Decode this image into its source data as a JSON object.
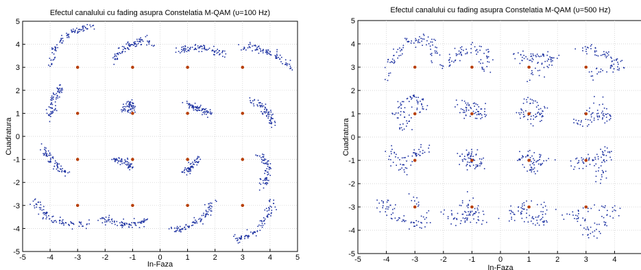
{
  "chart_data": [
    {
      "type": "scatter",
      "title": "Efectul canalului cu fading asupra Constelatia M-QAM (υ=100 Hz)",
      "xlabel": "In-Faza",
      "ylabel": "Cuadratura",
      "xlim": [
        -5,
        5
      ],
      "ylim": [
        -5,
        5
      ],
      "xticks": [
        -5,
        -4,
        -3,
        -2,
        -1,
        0,
        1,
        2,
        3,
        4,
        5
      ],
      "yticks": [
        -5,
        -4,
        -3,
        -2,
        -1,
        0,
        1,
        2,
        3,
        4,
        5
      ],
      "grid": true,
      "ideal_points": [
        [
          -3,
          3
        ],
        [
          -1,
          3
        ],
        [
          1,
          3
        ],
        [
          3,
          3
        ],
        [
          -3,
          1
        ],
        [
          -1,
          1
        ],
        [
          1,
          1
        ],
        [
          3,
          1
        ],
        [
          -3,
          -1
        ],
        [
          -1,
          -1
        ],
        [
          1,
          -1
        ],
        [
          3,
          -1
        ],
        [
          -3,
          -3
        ],
        [
          -1,
          -3
        ],
        [
          1,
          -3
        ],
        [
          3,
          -3
        ]
      ],
      "ideal_color": "#b8400a",
      "received_color": "#1a2fa0",
      "received_arcs": [
        [
          [
            -4.0,
            3.0
          ],
          [
            -3.9,
            3.6
          ],
          [
            -3.7,
            4.0
          ],
          [
            -3.4,
            4.4
          ],
          [
            -3.1,
            4.6
          ],
          [
            -2.8,
            4.7
          ],
          [
            -2.5,
            4.7
          ]
        ],
        [
          [
            -1.7,
            3.3
          ],
          [
            -1.5,
            3.6
          ],
          [
            -1.3,
            3.8
          ],
          [
            -1.1,
            4.0
          ],
          [
            -0.8,
            4.1
          ],
          [
            -0.6,
            4.15
          ],
          [
            -0.3,
            4.0
          ]
        ],
        [
          [
            0.7,
            3.7
          ],
          [
            0.9,
            3.75
          ],
          [
            1.2,
            3.8
          ],
          [
            1.5,
            3.85
          ],
          [
            1.8,
            3.8
          ],
          [
            2.1,
            3.7
          ],
          [
            2.3,
            3.55
          ]
        ],
        [
          [
            3.0,
            3.9
          ],
          [
            3.3,
            3.9
          ],
          [
            3.6,
            3.8
          ],
          [
            3.9,
            3.7
          ],
          [
            4.2,
            3.5
          ],
          [
            4.5,
            3.2
          ],
          [
            4.7,
            3.0
          ]
        ],
        [
          [
            -4.0,
            0.8
          ],
          [
            -3.95,
            1.1
          ],
          [
            -3.9,
            1.4
          ],
          [
            -3.8,
            1.7
          ],
          [
            -3.7,
            2.0
          ],
          [
            -3.6,
            2.15
          ]
        ],
        [
          [
            -1.3,
            1.05
          ],
          [
            -1.2,
            1.3
          ],
          [
            -1.1,
            1.5
          ],
          [
            -1.05,
            1.25
          ],
          [
            -1.1,
            1.15
          ]
        ],
        [
          [
            0.95,
            1.45
          ],
          [
            1.1,
            1.3
          ],
          [
            1.3,
            1.25
          ],
          [
            1.5,
            1.2
          ],
          [
            1.7,
            1.1
          ],
          [
            1.8,
            1.0
          ]
        ],
        [
          [
            3.3,
            1.6
          ],
          [
            3.6,
            1.4
          ],
          [
            3.8,
            1.2
          ],
          [
            3.95,
            1.0
          ],
          [
            4.05,
            0.8
          ],
          [
            4.1,
            0.55
          ]
        ],
        [
          [
            -4.3,
            -0.5
          ],
          [
            -4.15,
            -0.8
          ],
          [
            -4.0,
            -1.0
          ],
          [
            -3.8,
            -1.25
          ],
          [
            -3.6,
            -1.45
          ],
          [
            -3.4,
            -1.55
          ]
        ],
        [
          [
            -1.7,
            -1.0
          ],
          [
            -1.5,
            -1.05
          ],
          [
            -1.3,
            -1.1
          ],
          [
            -1.15,
            -1.2
          ],
          [
            -1.05,
            -1.35
          ]
        ],
        [
          [
            0.9,
            -1.6
          ],
          [
            1.0,
            -1.45
          ],
          [
            1.15,
            -1.3
          ],
          [
            1.25,
            -1.1
          ],
          [
            1.35,
            -0.95
          ]
        ],
        [
          [
            3.6,
            -0.8
          ],
          [
            3.8,
            -1.0
          ],
          [
            3.9,
            -1.3
          ],
          [
            3.9,
            -1.6
          ],
          [
            3.8,
            -1.9
          ],
          [
            3.7,
            -2.2
          ]
        ],
        [
          [
            -4.5,
            -2.8
          ],
          [
            -4.4,
            -3.1
          ],
          [
            -4.2,
            -3.4
          ],
          [
            -3.9,
            -3.6
          ],
          [
            -3.5,
            -3.75
          ],
          [
            -3.1,
            -3.85
          ],
          [
            -2.6,
            -3.9
          ]
        ],
        [
          [
            -2.2,
            -3.5
          ],
          [
            -1.9,
            -3.65
          ],
          [
            -1.6,
            -3.75
          ],
          [
            -1.3,
            -3.8
          ],
          [
            -1.0,
            -3.8
          ],
          [
            -0.7,
            -3.75
          ],
          [
            -0.5,
            -3.65
          ]
        ],
        [
          [
            0.4,
            -4.0
          ],
          [
            0.7,
            -4.05
          ],
          [
            1.0,
            -3.95
          ],
          [
            1.3,
            -3.75
          ],
          [
            1.6,
            -3.5
          ],
          [
            1.8,
            -3.2
          ],
          [
            2.0,
            -2.85
          ]
        ],
        [
          [
            2.7,
            -4.5
          ],
          [
            3.0,
            -4.4
          ],
          [
            3.3,
            -4.25
          ],
          [
            3.6,
            -4.0
          ],
          [
            3.85,
            -3.6
          ],
          [
            4.0,
            -3.2
          ],
          [
            4.05,
            -2.8
          ]
        ]
      ]
    },
    {
      "type": "scatter",
      "title": "Efectul canalului cu fading asupra Constelatia M-QAM (υ=500 Hz)",
      "xlabel": "In-Faza",
      "ylabel": "Cuadratura",
      "xlim": [
        -5,
        5
      ],
      "ylim": [
        -5,
        5
      ],
      "xticks": [
        -5,
        -4,
        -3,
        -2,
        -1,
        0,
        1,
        2,
        3,
        4,
        5
      ],
      "yticks": [
        -5,
        -4,
        -3,
        -2,
        -1,
        0,
        1,
        2,
        3,
        4,
        5
      ],
      "grid": true,
      "ideal_points": [
        [
          -3,
          3
        ],
        [
          -1,
          3
        ],
        [
          1,
          3
        ],
        [
          3,
          3
        ],
        [
          -3,
          1
        ],
        [
          -1,
          1
        ],
        [
          1,
          1
        ],
        [
          3,
          1
        ],
        [
          -3,
          -1
        ],
        [
          -1,
          -1
        ],
        [
          1,
          -1
        ],
        [
          3,
          -1
        ],
        [
          -3,
          -3
        ],
        [
          -1,
          -3
        ],
        [
          1,
          -3
        ],
        [
          3,
          -3
        ]
      ],
      "ideal_color": "#b8400a",
      "received_color": "#1a2fa0",
      "received_arcs": [
        [
          [
            -4.1,
            2.6
          ],
          [
            -3.9,
            3.2
          ],
          [
            -3.6,
            3.7
          ],
          [
            -3.2,
            4.05
          ],
          [
            -2.8,
            4.2
          ],
          [
            -2.5,
            4.1
          ],
          [
            -2.4,
            3.7
          ],
          [
            -2.2,
            3.2
          ]
        ],
        [
          [
            -1.9,
            3.0
          ],
          [
            -1.7,
            3.35
          ],
          [
            -1.4,
            3.6
          ],
          [
            -1.0,
            3.75
          ],
          [
            -0.6,
            3.7
          ],
          [
            -0.5,
            3.2
          ],
          [
            -0.7,
            2.9
          ]
        ],
        [
          [
            0.5,
            3.5
          ],
          [
            0.9,
            3.5
          ],
          [
            1.2,
            3.4
          ],
          [
            1.6,
            3.6
          ],
          [
            1.8,
            3.3
          ],
          [
            1.5,
            3.05
          ],
          [
            1.1,
            2.6
          ]
        ],
        [
          [
            2.9,
            3.8
          ],
          [
            3.3,
            3.75
          ],
          [
            3.7,
            3.6
          ],
          [
            4.0,
            3.35
          ],
          [
            4.3,
            3.0
          ],
          [
            3.6,
            3.0
          ],
          [
            3.1,
            2.6
          ]
        ],
        [
          [
            -3.7,
            0.8
          ],
          [
            -3.5,
            1.2
          ],
          [
            -3.2,
            1.6
          ],
          [
            -2.9,
            1.75
          ],
          [
            -2.7,
            1.35
          ],
          [
            -3.3,
            0.6
          ],
          [
            -3.5,
            0.5
          ]
        ],
        [
          [
            -1.3,
            1.1
          ],
          [
            -1.1,
            1.4
          ],
          [
            -0.8,
            1.2
          ],
          [
            -0.6,
            1.0
          ],
          [
            -1.0,
            0.9
          ],
          [
            -1.4,
            1.6
          ]
        ],
        [
          [
            0.7,
            1.2
          ],
          [
            0.9,
            0.9
          ],
          [
            1.2,
            0.8
          ],
          [
            1.5,
            1.0
          ],
          [
            1.1,
            1.4
          ],
          [
            0.9,
            1.6
          ]
        ],
        [
          [
            2.5,
            0.6
          ],
          [
            2.9,
            0.6
          ],
          [
            3.3,
            1.1
          ],
          [
            3.6,
            0.7
          ],
          [
            3.9,
            0.9
          ],
          [
            3.3,
            1.8
          ]
        ],
        [
          [
            -3.9,
            -0.6
          ],
          [
            -3.7,
            -1.1
          ],
          [
            -3.5,
            -1.4
          ],
          [
            -3.2,
            -0.9
          ],
          [
            -2.9,
            -0.6
          ],
          [
            -2.6,
            -0.55
          ]
        ],
        [
          [
            -1.4,
            -1.0
          ],
          [
            -1.1,
            -0.7
          ],
          [
            -0.9,
            -1.0
          ],
          [
            -0.7,
            -1.2
          ],
          [
            -1.2,
            -1.35
          ],
          [
            -0.9,
            -0.5
          ]
        ],
        [
          [
            0.6,
            -1.1
          ],
          [
            0.9,
            -0.8
          ],
          [
            1.2,
            -1.0
          ],
          [
            1.5,
            -0.9
          ],
          [
            1.0,
            -1.4
          ],
          [
            1.3,
            -1.3
          ]
        ],
        [
          [
            2.5,
            -1.3
          ],
          [
            2.8,
            -1.05
          ],
          [
            3.2,
            -0.9
          ],
          [
            3.6,
            -1.0
          ],
          [
            3.7,
            -0.5
          ],
          [
            3.6,
            -1.5
          ],
          [
            3.5,
            -1.9
          ]
        ],
        [
          [
            -4.3,
            -3.2
          ],
          [
            -4.0,
            -2.8
          ],
          [
            -3.7,
            -3.4
          ],
          [
            -3.3,
            -3.7
          ],
          [
            -2.9,
            -3.8
          ],
          [
            -2.6,
            -3.4
          ],
          [
            -3.0,
            -2.5
          ]
        ],
        [
          [
            -1.9,
            -3.2
          ],
          [
            -1.6,
            -3.5
          ],
          [
            -1.2,
            -3.55
          ],
          [
            -0.9,
            -3.3
          ],
          [
            -1.3,
            -2.8
          ],
          [
            -0.6,
            -3.7
          ],
          [
            -1.2,
            -2.5
          ]
        ],
        [
          [
            0.3,
            -3.4
          ],
          [
            0.6,
            -3.2
          ],
          [
            0.8,
            -2.9
          ],
          [
            1.2,
            -3.6
          ],
          [
            1.5,
            -3.7
          ],
          [
            1.6,
            -2.9
          ],
          [
            0.8,
            -3.6
          ]
        ],
        [
          [
            2.3,
            -3.2
          ],
          [
            2.7,
            -3.3
          ],
          [
            3.0,
            -3.9
          ],
          [
            3.4,
            -4.2
          ],
          [
            3.7,
            -3.6
          ],
          [
            4.0,
            -3.0
          ],
          [
            2.7,
            -3.0
          ]
        ]
      ]
    }
  ]
}
